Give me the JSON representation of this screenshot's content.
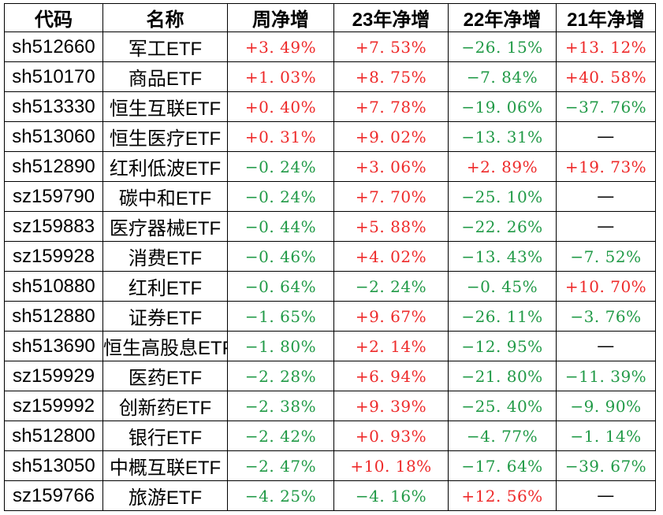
{
  "colors": {
    "up": "#ee2a2a",
    "down": "#219a47",
    "neutral": "#000000",
    "border": "#000000",
    "background": "#ffffff"
  },
  "chart_data": {
    "type": "table",
    "columns": [
      "代码",
      "名称",
      "周净增",
      "23年净增",
      "22年净增",
      "21年净增"
    ],
    "rows": [
      {
        "code": "sh512660",
        "name": "军工ETF",
        "values": [
          {
            "text": "+3. 49%",
            "trend": "up"
          },
          {
            "text": "+7. 53%",
            "trend": "up"
          },
          {
            "text": "−26. 15%",
            "trend": "down"
          },
          {
            "text": "+13. 12%",
            "trend": "up"
          }
        ]
      },
      {
        "code": "sh510170",
        "name": "商品ETF",
        "values": [
          {
            "text": "+1. 03%",
            "trend": "up"
          },
          {
            "text": "+8. 75%",
            "trend": "up"
          },
          {
            "text": "−7. 84%",
            "trend": "down"
          },
          {
            "text": "+40. 58%",
            "trend": "up"
          }
        ]
      },
      {
        "code": "sh513330",
        "name": "恒生互联ETF",
        "values": [
          {
            "text": "+0. 40%",
            "trend": "up"
          },
          {
            "text": "+7. 78%",
            "trend": "up"
          },
          {
            "text": "−19. 06%",
            "trend": "down"
          },
          {
            "text": "−37. 76%",
            "trend": "down"
          }
        ]
      },
      {
        "code": "sh513060",
        "name": "恒生医疗ETF",
        "values": [
          {
            "text": "+0. 31%",
            "trend": "up"
          },
          {
            "text": "+9. 02%",
            "trend": "up"
          },
          {
            "text": "−13. 31%",
            "trend": "down"
          },
          {
            "text": "—",
            "trend": "flat"
          }
        ]
      },
      {
        "code": "sh512890",
        "name": "红利低波ETF",
        "values": [
          {
            "text": "−0. 24%",
            "trend": "down"
          },
          {
            "text": "+3. 06%",
            "trend": "up"
          },
          {
            "text": "+2. 89%",
            "trend": "up"
          },
          {
            "text": "+19. 73%",
            "trend": "up"
          }
        ]
      },
      {
        "code": "sz159790",
        "name": "碳中和ETF",
        "values": [
          {
            "text": "−0. 24%",
            "trend": "down"
          },
          {
            "text": "+7. 70%",
            "trend": "up"
          },
          {
            "text": "−25. 10%",
            "trend": "down"
          },
          {
            "text": "—",
            "trend": "flat"
          }
        ]
      },
      {
        "code": "sz159883",
        "name": "医疗器械ETF",
        "values": [
          {
            "text": "−0. 44%",
            "trend": "down"
          },
          {
            "text": "+5. 88%",
            "trend": "up"
          },
          {
            "text": "−22. 26%",
            "trend": "down"
          },
          {
            "text": "—",
            "trend": "flat"
          }
        ]
      },
      {
        "code": "sz159928",
        "name": "消费ETF",
        "values": [
          {
            "text": "−0. 46%",
            "trend": "down"
          },
          {
            "text": "+4. 02%",
            "trend": "up"
          },
          {
            "text": "−13. 43%",
            "trend": "down"
          },
          {
            "text": "−7. 52%",
            "trend": "down"
          }
        ]
      },
      {
        "code": "sh510880",
        "name": "红利ETF",
        "values": [
          {
            "text": "−0. 64%",
            "trend": "down"
          },
          {
            "text": "−2. 24%",
            "trend": "down"
          },
          {
            "text": "−0. 45%",
            "trend": "down"
          },
          {
            "text": "+10. 70%",
            "trend": "up"
          }
        ]
      },
      {
        "code": "sh512880",
        "name": "证券ETF",
        "values": [
          {
            "text": "−1. 65%",
            "trend": "down"
          },
          {
            "text": "+9. 67%",
            "trend": "up"
          },
          {
            "text": "−26. 11%",
            "trend": "down"
          },
          {
            "text": "−3. 76%",
            "trend": "down"
          }
        ]
      },
      {
        "code": "sh513690",
        "name": "恒生高股息ETF",
        "values": [
          {
            "text": "−1. 80%",
            "trend": "down"
          },
          {
            "text": "+2. 14%",
            "trend": "up"
          },
          {
            "text": "−12. 95%",
            "trend": "down"
          },
          {
            "text": "—",
            "trend": "flat"
          }
        ]
      },
      {
        "code": "sz159929",
        "name": "医药ETF",
        "values": [
          {
            "text": "−2. 28%",
            "trend": "down"
          },
          {
            "text": "+6. 94%",
            "trend": "up"
          },
          {
            "text": "−21. 80%",
            "trend": "down"
          },
          {
            "text": "−11. 39%",
            "trend": "down"
          }
        ]
      },
      {
        "code": "sz159992",
        "name": "创新药ETF",
        "values": [
          {
            "text": "−2. 38%",
            "trend": "down"
          },
          {
            "text": "+9. 39%",
            "trend": "up"
          },
          {
            "text": "−25. 40%",
            "trend": "down"
          },
          {
            "text": "−9. 90%",
            "trend": "down"
          }
        ]
      },
      {
        "code": "sh512800",
        "name": "银行ETF",
        "values": [
          {
            "text": "−2. 42%",
            "trend": "down"
          },
          {
            "text": "+0. 93%",
            "trend": "up"
          },
          {
            "text": "−4. 77%",
            "trend": "down"
          },
          {
            "text": "−1. 14%",
            "trend": "down"
          }
        ]
      },
      {
        "code": "sh513050",
        "name": "中概互联ETF",
        "values": [
          {
            "text": "−2. 47%",
            "trend": "down"
          },
          {
            "text": "+10. 18%",
            "trend": "up"
          },
          {
            "text": "−17. 64%",
            "trend": "down"
          },
          {
            "text": "−39. 67%",
            "trend": "down"
          }
        ]
      },
      {
        "code": "sz159766",
        "name": "旅游ETF",
        "values": [
          {
            "text": "−4. 25%",
            "trend": "down"
          },
          {
            "text": "−4. 16%",
            "trend": "down"
          },
          {
            "text": "+12. 56%",
            "trend": "up"
          },
          {
            "text": "—",
            "trend": "flat"
          }
        ]
      }
    ]
  }
}
